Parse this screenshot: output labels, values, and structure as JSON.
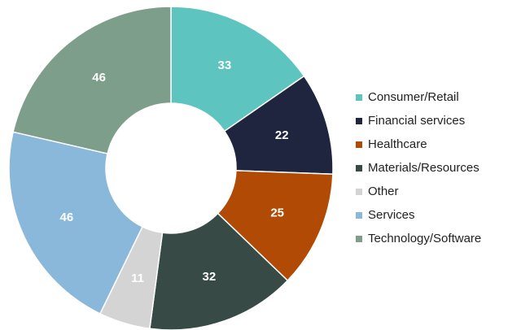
{
  "chart_data": {
    "type": "donut",
    "categories": [
      "Consumer/Retail",
      "Financial services",
      "Healthcare",
      "Materials/Resources",
      "Other",
      "Services",
      "Technology/Software"
    ],
    "values": [
      33,
      22,
      25,
      32,
      11,
      46,
      46
    ],
    "colors": [
      "#5ec4bf",
      "#20253f",
      "#b04a04",
      "#374a45",
      "#d4d4d4",
      "#8ab8da",
      "#7d9e8a"
    ],
    "legend": "right"
  }
}
